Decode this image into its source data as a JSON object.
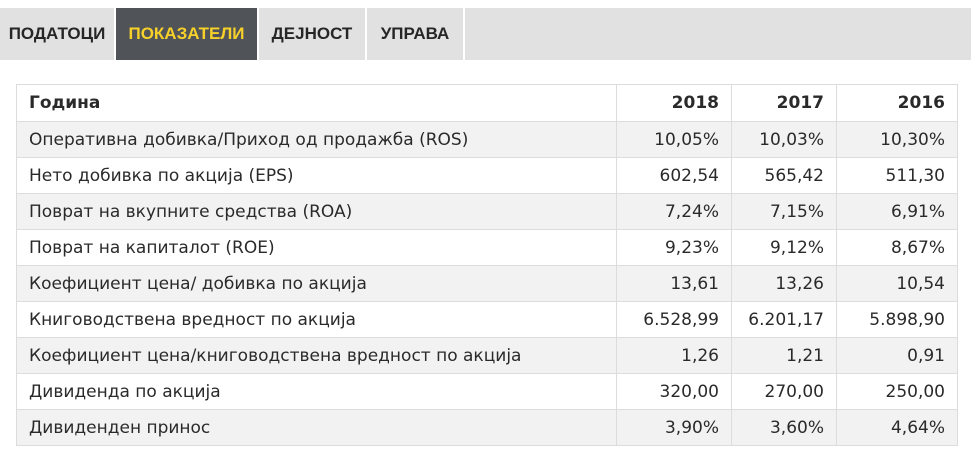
{
  "tabs": [
    {
      "label": "ПОДАТОЦИ",
      "active": false
    },
    {
      "label": "ПОКАЗАТЕЛИ",
      "active": true
    },
    {
      "label": "ДЕЈНОСТ",
      "active": false
    },
    {
      "label": "УПРАВА",
      "active": false
    }
  ],
  "colors": {
    "active_tab_bg": "#505358",
    "active_tab_text": "#f7d12a",
    "tab_bar_bg": "#e1e1e1",
    "row_stripe": "#f2f2f2"
  },
  "table": {
    "headers": [
      "Година",
      "2018",
      "2017",
      "2016"
    ],
    "rows": [
      [
        "Оперативна добивка/Приход од продажба (ROS)",
        "10,05%",
        "10,03%",
        "10,30%"
      ],
      [
        "Нето добивка по акција (EPS)",
        "602,54",
        "565,42",
        "511,30"
      ],
      [
        "Поврат на вкупните средства (ROA)",
        "7,24%",
        "7,15%",
        "6,91%"
      ],
      [
        "Поврат на капиталот (ROE)",
        "9,23%",
        "9,12%",
        "8,67%"
      ],
      [
        "Коефициент цена/ добивка по акција",
        "13,61",
        "13,26",
        "10,54"
      ],
      [
        "Книговодствена вредност по акција",
        "6.528,99",
        "6.201,17",
        "5.898,90"
      ],
      [
        "Коефициент цена/книговодствена вредност по акција",
        "1,26",
        "1,21",
        "0,91"
      ],
      [
        "Дивиденда по акција",
        "320,00",
        "270,00",
        "250,00"
      ],
      [
        "Дивиденден принос",
        "3,90%",
        "3,60%",
        "4,64%"
      ]
    ]
  }
}
